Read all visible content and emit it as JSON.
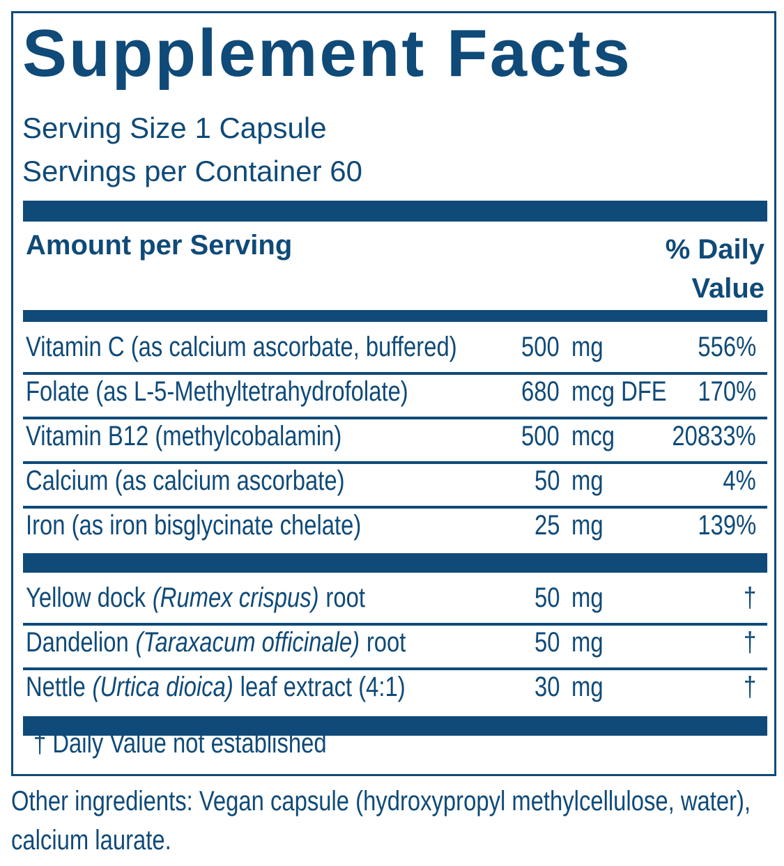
{
  "title": "Supplement Facts",
  "serving_size": "Serving Size 1 Capsule",
  "servings_per_container": "Servings per Container 60",
  "header": {
    "amount": "Amount per Serving",
    "daily_value": "% Daily Value"
  },
  "groups": [
    {
      "rows": [
        {
          "name": [
            "Vitamin C (as calcium ascorbate, buffered)"
          ],
          "amount": "500",
          "unit": "mg",
          "dv": "556%"
        },
        {
          "name": [
            "Folate (as L-5-Methyltetrahydrofolate)"
          ],
          "amount": "680",
          "unit": "mcg DFE",
          "dv": "170%"
        },
        {
          "name": [
            "Vitamin B12 (methylcobalamin)"
          ],
          "amount": "500",
          "unit": "mcg",
          "dv": "20833%"
        },
        {
          "name": [
            "Calcium (as calcium ascorbate)"
          ],
          "amount": "50",
          "unit": "mg",
          "dv": "4%"
        },
        {
          "name": [
            "Iron (as iron bisglycinate chelate)"
          ],
          "amount": "25",
          "unit": "mg",
          "dv": "139%"
        }
      ]
    },
    {
      "rows": [
        {
          "name": [
            "Yellow dock",
            "(Rumex crispus)",
            "root"
          ],
          "amount": "50",
          "unit": "mg",
          "dv": "†"
        },
        {
          "name": [
            "Dandelion",
            "(Taraxacum officinale)",
            "root"
          ],
          "amount": "50",
          "unit": "mg",
          "dv": "†"
        },
        {
          "name": [
            "Nettle",
            "(Urtica dioica)",
            "leaf extract (4:1)"
          ],
          "amount": "30",
          "unit": "mg",
          "dv": "†"
        }
      ]
    }
  ],
  "footnote": "† Daily Value not established",
  "other_ingredients": "Other ingredients: Vegan capsule (hydroxypropyl methylcellulose, water), calcium laurate."
}
